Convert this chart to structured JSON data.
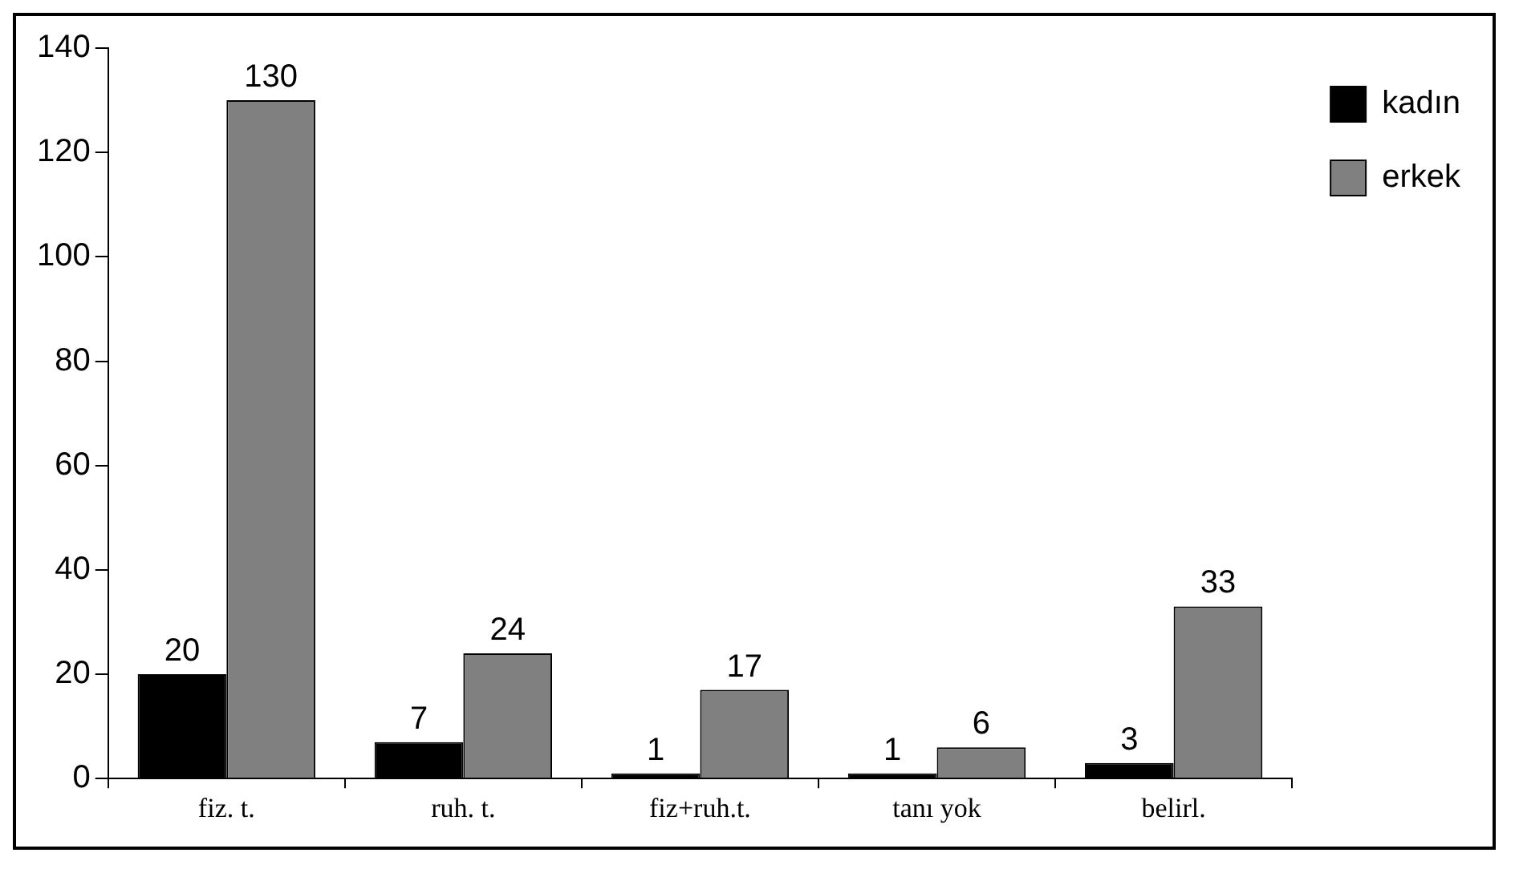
{
  "chart_data": {
    "type": "bar",
    "categories": [
      "fiz. t.",
      "ruh. t.",
      "fiz+ruh.t.",
      "tanı yok",
      "belirl."
    ],
    "series": [
      {
        "name": "kadın",
        "color": "#000000",
        "values": [
          20,
          7,
          1,
          1,
          3
        ]
      },
      {
        "name": "erkek",
        "color": "#808080",
        "values": [
          130,
          24,
          17,
          6,
          33
        ]
      }
    ],
    "ylim": [
      0,
      140
    ],
    "yticks": [
      0,
      20,
      40,
      60,
      80,
      100,
      120,
      140
    ],
    "grid": false,
    "legend": "top right",
    "data_labels": true
  }
}
